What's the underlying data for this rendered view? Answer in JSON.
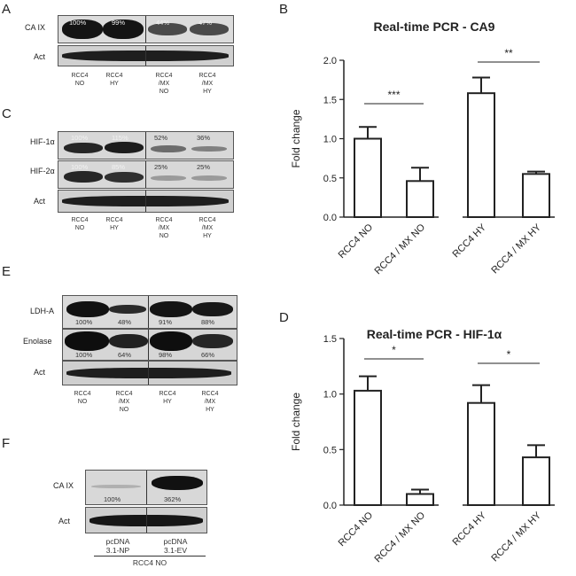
{
  "panels": {
    "A": {
      "letter": "A",
      "labels": {
        "row1": "CA IX",
        "row2": "Act"
      },
      "pcts": [
        "100%",
        "99%",
        "44%",
        "47%"
      ],
      "lanes": [
        [
          "RCC4",
          "NO"
        ],
        [
          "RCC4",
          "HY"
        ],
        [
          "RCC4",
          "/MX",
          "NO"
        ],
        [
          "RCC4",
          "/MX",
          "HY"
        ]
      ]
    },
    "C": {
      "letter": "C",
      "labels": {
        "row1": "HIF-1α",
        "row2": "HIF-2α",
        "row3": "Act"
      },
      "pcts_row1": [
        "100%",
        "115%",
        "52%",
        "36%"
      ],
      "pcts_row2": [
        "100%",
        "85%",
        "25%",
        "25%"
      ],
      "lanes": [
        [
          "RCC4",
          "NO"
        ],
        [
          "RCC4",
          "HY"
        ],
        [
          "RCC4",
          "/MX",
          "NO"
        ],
        [
          "RCC4",
          "/MX",
          "HY"
        ]
      ]
    },
    "E": {
      "letter": "E",
      "labels": {
        "row1": "LDH-A",
        "row2": "Enolase",
        "row3": "Act"
      },
      "pcts_row1": [
        "100%",
        "48%",
        "91%",
        "88%"
      ],
      "pcts_row2": [
        "100%",
        "64%",
        "98%",
        "66%"
      ],
      "lanes": [
        [
          "RCC4",
          "NO"
        ],
        [
          "RCC4",
          "/MX",
          "NO"
        ],
        [
          "RCC4",
          "HY"
        ],
        [
          "RCC4",
          "/MX",
          "HY"
        ]
      ]
    },
    "F": {
      "letter": "F",
      "labels": {
        "row1": "CA IX",
        "row2": "Act"
      },
      "pcts": [
        "100%",
        "362%"
      ],
      "lanes": [
        [
          "pcDNA",
          "3.1-NP"
        ],
        [
          "pcDNA",
          "3.1-EV"
        ]
      ],
      "group_label": "RCC4 NO"
    }
  },
  "chart_data": [
    {
      "panel": "B",
      "type": "bar",
      "title": "Real-time PCR - CA9",
      "ylabel": "Fold change",
      "categories": [
        "RCC4 NO",
        "RCC4 / MX NO",
        "RCC4 HY",
        "RCC4 / MX HY"
      ],
      "values": [
        1.0,
        0.46,
        1.58,
        0.55
      ],
      "errors": [
        0.15,
        0.17,
        0.2,
        0.03
      ],
      "ylim": [
        0,
        2.0
      ],
      "yticks": [
        "0.0",
        "0.5",
        "1.0",
        "1.5",
        "2.0"
      ],
      "annotations": [
        {
          "text": "***",
          "between": [
            0,
            1
          ]
        },
        {
          "text": "**",
          "between": [
            2,
            3
          ]
        }
      ]
    },
    {
      "panel": "D",
      "type": "bar",
      "title": "Real-time PCR - HIF-1α",
      "ylabel": "Fold change",
      "categories": [
        "RCC4 NO",
        "RCC4 / MX NO",
        "RCC4 HY",
        "RCC4 / MX HY"
      ],
      "values": [
        1.03,
        0.1,
        0.92,
        0.43
      ],
      "errors": [
        0.13,
        0.04,
        0.16,
        0.11
      ],
      "ylim": [
        0,
        1.5
      ],
      "yticks": [
        "0.0",
        "0.5",
        "1.0",
        "1.5"
      ],
      "annotations": [
        {
          "text": "*",
          "between": [
            0,
            1
          ]
        },
        {
          "text": "*",
          "between": [
            2,
            3
          ]
        }
      ]
    }
  ]
}
